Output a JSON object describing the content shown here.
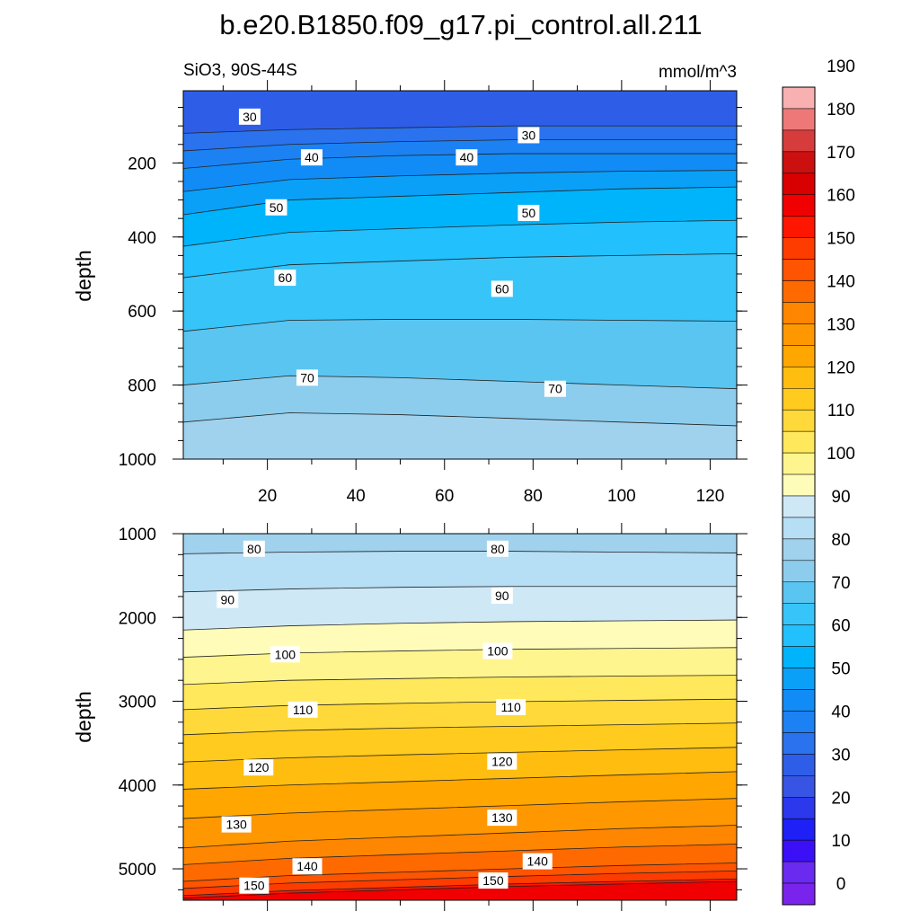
{
  "title": "b.e20.B1850.f09_g17.pi_control.all.211",
  "subtitle_left": "SiO3, 90S-44S",
  "subtitle_right": "mmol/m^3",
  "chart_data": [
    {
      "type": "heatmap",
      "panel": "upper",
      "ylabel": "depth",
      "xlim": [
        1,
        126
      ],
      "ylim": [
        1000,
        5
      ],
      "x_ticks": [
        20,
        40,
        60,
        80,
        100,
        120
      ],
      "y_ticks": [
        200,
        400,
        600,
        800,
        1000
      ],
      "contours": [
        {
          "level": 30,
          "depth": [
            120,
            110,
            105,
            100,
            100,
            100
          ]
        },
        {
          "level": 40,
          "depth": [
            215,
            190,
            180,
            175,
            175,
            175
          ]
        },
        {
          "level": 50,
          "depth": [
            340,
            300,
            290,
            280,
            270,
            265
          ]
        },
        {
          "level": 60,
          "depth": [
            510,
            475,
            465,
            455,
            450,
            445
          ]
        },
        {
          "level": 70,
          "depth": [
            800,
            775,
            780,
            790,
            800,
            810
          ]
        }
      ],
      "contour_x": [
        1,
        25,
        50,
        75,
        100,
        126
      ],
      "labels": [
        {
          "text": "30",
          "x": 16,
          "depth": 75
        },
        {
          "text": "30",
          "x": 79,
          "depth": 125
        },
        {
          "text": "40",
          "x": 30,
          "depth": 185
        },
        {
          "text": "40",
          "x": 65,
          "depth": 185
        },
        {
          "text": "50",
          "x": 22,
          "depth": 320
        },
        {
          "text": "50",
          "x": 79,
          "depth": 335
        },
        {
          "text": "60",
          "x": 24,
          "depth": 510
        },
        {
          "text": "60",
          "x": 73,
          "depth": 540
        },
        {
          "text": "70",
          "x": 29,
          "depth": 780
        },
        {
          "text": "70",
          "x": 85,
          "depth": 810
        }
      ]
    },
    {
      "type": "heatmap",
      "panel": "lower",
      "ylabel": "depth",
      "xlim": [
        1,
        126
      ],
      "ylim": [
        5375,
        1000
      ],
      "y_ticks": [
        1000,
        2000,
        3000,
        4000,
        5000
      ],
      "contours": [
        {
          "level": 80,
          "depth": [
            1240,
            1220,
            1210,
            1210,
            1220,
            1230
          ]
        },
        {
          "level": 90,
          "depth": [
            2150,
            2100,
            2070,
            2050,
            2040,
            2030
          ]
        },
        {
          "level": 100,
          "depth": [
            2800,
            2750,
            2730,
            2710,
            2700,
            2690
          ]
        },
        {
          "level": 110,
          "depth": [
            3400,
            3350,
            3320,
            3300,
            3280,
            3260
          ]
        },
        {
          "level": 120,
          "depth": [
            4050,
            4000,
            3960,
            3920,
            3880,
            3840
          ]
        },
        {
          "level": 130,
          "depth": [
            4750,
            4670,
            4620,
            4570,
            4520,
            4480
          ]
        },
        {
          "level": 140,
          "depth": [
            5150,
            5080,
            5040,
            5000,
            4960,
            4930
          ]
        },
        {
          "level": 150,
          "depth": [
            5320,
            5260,
            5220,
            5180,
            5150,
            5120
          ]
        }
      ],
      "contour_x": [
        1,
        25,
        50,
        75,
        100,
        126
      ],
      "labels": [
        {
          "text": "80",
          "x": 17,
          "depth": 1180
        },
        {
          "text": "80",
          "x": 72,
          "depth": 1180
        },
        {
          "text": "90",
          "x": 11,
          "depth": 1790
        },
        {
          "text": "90",
          "x": 73,
          "depth": 1740
        },
        {
          "text": "100",
          "x": 24,
          "depth": 2440
        },
        {
          "text": "100",
          "x": 72,
          "depth": 2400
        },
        {
          "text": "110",
          "x": 28,
          "depth": 3100
        },
        {
          "text": "110",
          "x": 75,
          "depth": 3070
        },
        {
          "text": "120",
          "x": 18,
          "depth": 3790
        },
        {
          "text": "120",
          "x": 73,
          "depth": 3720
        },
        {
          "text": "130",
          "x": 13,
          "depth": 4470
        },
        {
          "text": "130",
          "x": 73,
          "depth": 4390
        },
        {
          "text": "140",
          "x": 29,
          "depth": 4970
        },
        {
          "text": "140",
          "x": 81,
          "depth": 4910
        },
        {
          "text": "150",
          "x": 17,
          "depth": 5200
        },
        {
          "text": "150",
          "x": 71,
          "depth": 5140
        }
      ]
    }
  ],
  "colorbar": {
    "labels": [
      "0",
      "10",
      "20",
      "30",
      "40",
      "50",
      "60",
      "70",
      "80",
      "90",
      "100",
      "110",
      "120",
      "130",
      "140",
      "150",
      "160",
      "170",
      "180",
      "190"
    ],
    "colors": [
      "#7a23ec",
      "#6a2af0",
      "#3c10f7",
      "#1e20f5",
      "#2b38ec",
      "#3754e4",
      "#2e5ee8",
      "#2a72ee",
      "#1c82f3",
      "#118cf7",
      "#0aa0f8",
      "#00b4fb",
      "#22c0fd",
      "#37c4f9",
      "#5ac5f1",
      "#8ccded",
      "#a0d2ee",
      "#b6def5",
      "#cfe8f6",
      "#fffcba",
      "#fff58e",
      "#ffe85c",
      "#ffd93a",
      "#ffcb1e",
      "#ffbd10",
      "#ffa600",
      "#ff9800",
      "#ff8600",
      "#ff6a00",
      "#ff5400",
      "#ff3c00",
      "#ff1600",
      "#f00000",
      "#d80000",
      "#cc1010",
      "#d63c3c",
      "#ee7878",
      "#f8b0b0"
    ]
  }
}
